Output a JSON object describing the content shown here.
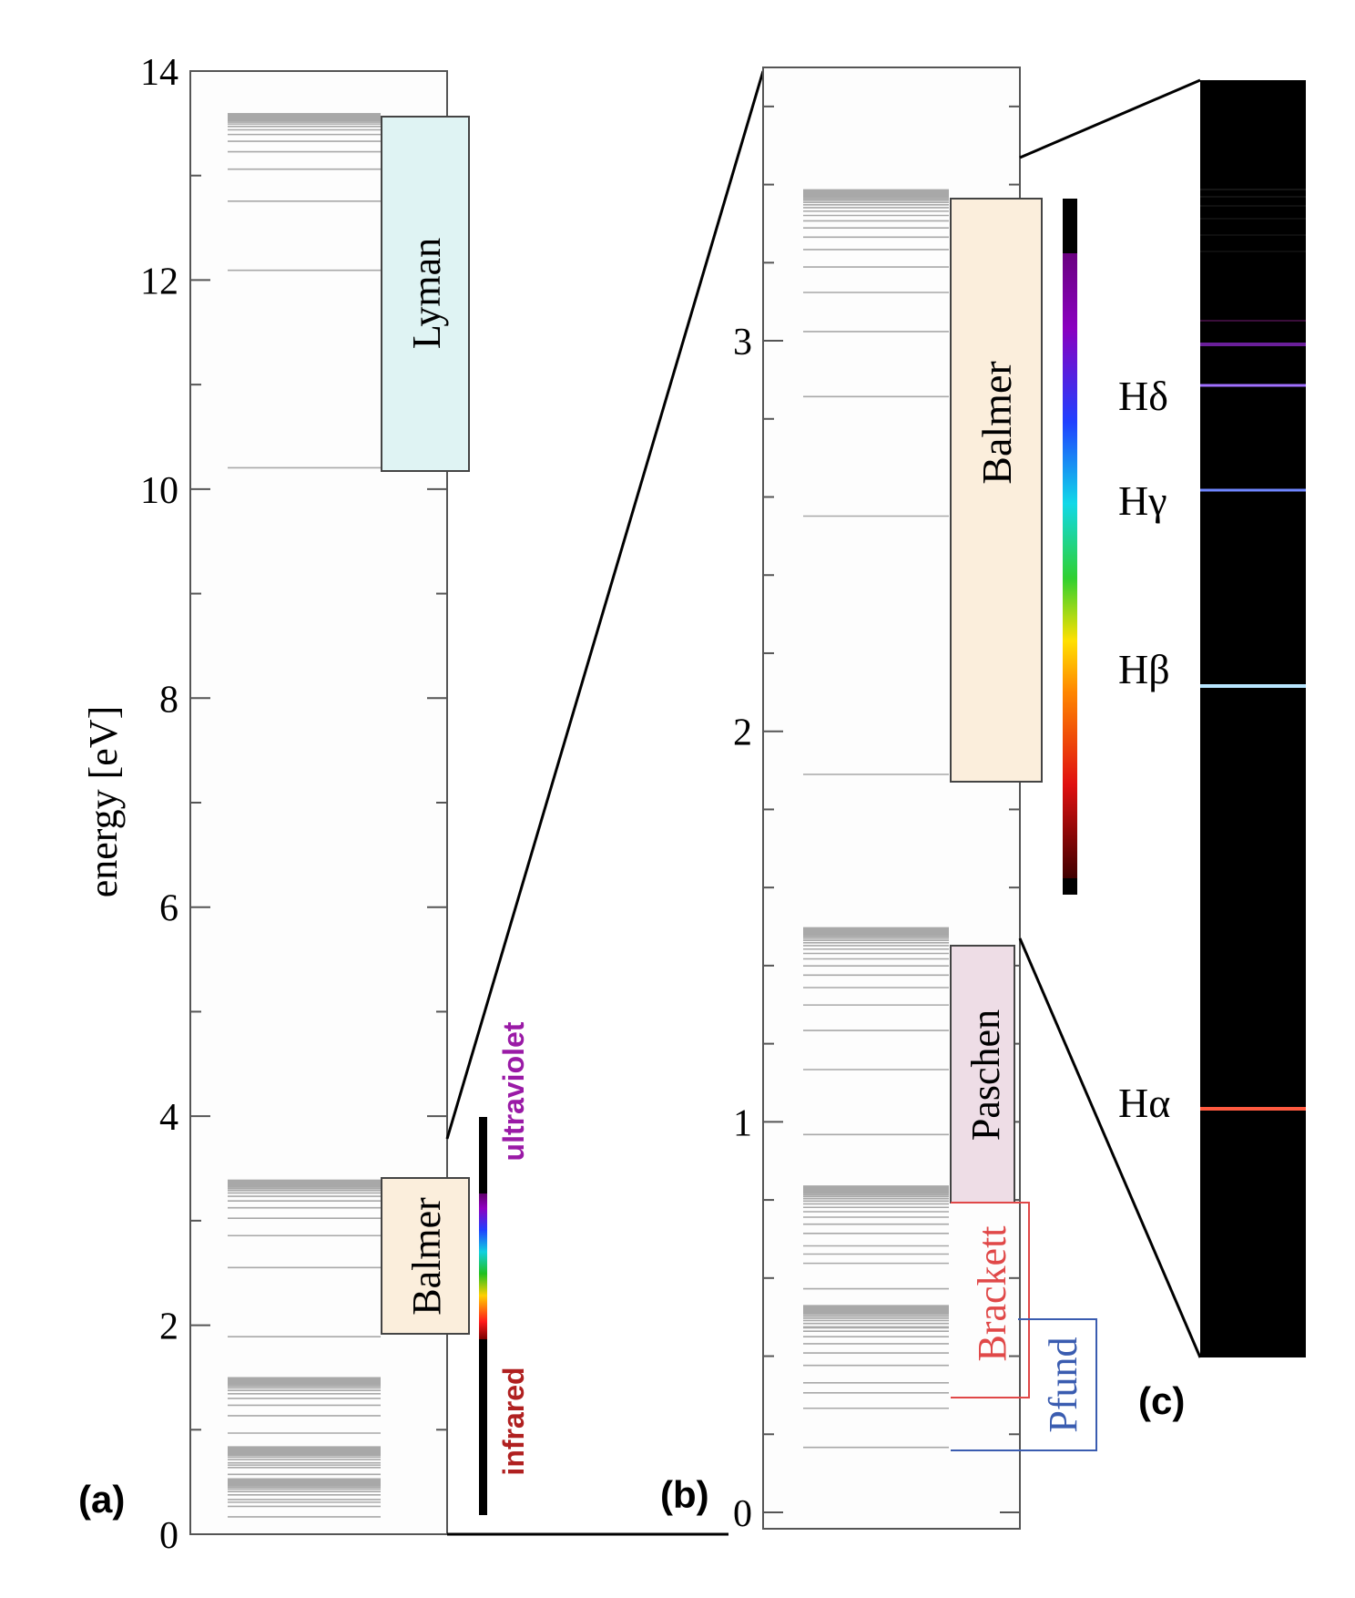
{
  "panel_a": {
    "label": "(a)",
    "ylabel": "energy [eV]",
    "ylim": [
      0,
      14
    ],
    "yticks": [
      "0",
      "2",
      "4",
      "6",
      "8",
      "10",
      "12",
      "14"
    ],
    "lyman_label": "Lyman",
    "balmer_label": "Balmer",
    "ultraviolet_label": "ultraviolet",
    "infrared_label": "infrared"
  },
  "panel_b": {
    "label": "(b)",
    "ylim": [
      0,
      3.7
    ],
    "yticks": [
      "0",
      "1",
      "2",
      "3"
    ],
    "balmer_label": "Balmer",
    "paschen_label": "Paschen",
    "brackett_label": "Brackett",
    "pfund_label": "Pfund"
  },
  "panel_c": {
    "label": "(c)",
    "line_labels": {
      "h_delta": "Hδ",
      "h_gamma": "Hγ",
      "h_beta": "Hβ",
      "h_alpha": "Hα"
    }
  },
  "colors": {
    "lyman_fill": "#dff3f3",
    "balmer_fill": "#fbeedc",
    "paschen_fill": "#eedde6",
    "brackett": "#e04848",
    "pfund": "#3a5cb0",
    "ultraviolet_text": "#9a1aa6",
    "infrared_text": "#b02020",
    "level_lines": "#a8a8a8"
  },
  "chart_data": {
    "type": "energy-level diagram",
    "series": [
      {
        "name": "Lyman",
        "min": 10.2,
        "max": 13.6
      },
      {
        "name": "Balmer",
        "min": 1.89,
        "max": 3.4
      },
      {
        "name": "Paschen",
        "min": 0.66,
        "max": 1.51
      },
      {
        "name": "Brackett",
        "min": 0.31,
        "max": 0.85
      },
      {
        "name": "Pfund",
        "min": 0.17,
        "max": 0.54
      }
    ],
    "spectral_lines": [
      {
        "name": "Hα",
        "energy": 1.89
      },
      {
        "name": "Hβ",
        "energy": 2.55
      },
      {
        "name": "Hγ",
        "energy": 2.86
      },
      {
        "name": "Hδ",
        "energy": 3.02
      }
    ]
  }
}
